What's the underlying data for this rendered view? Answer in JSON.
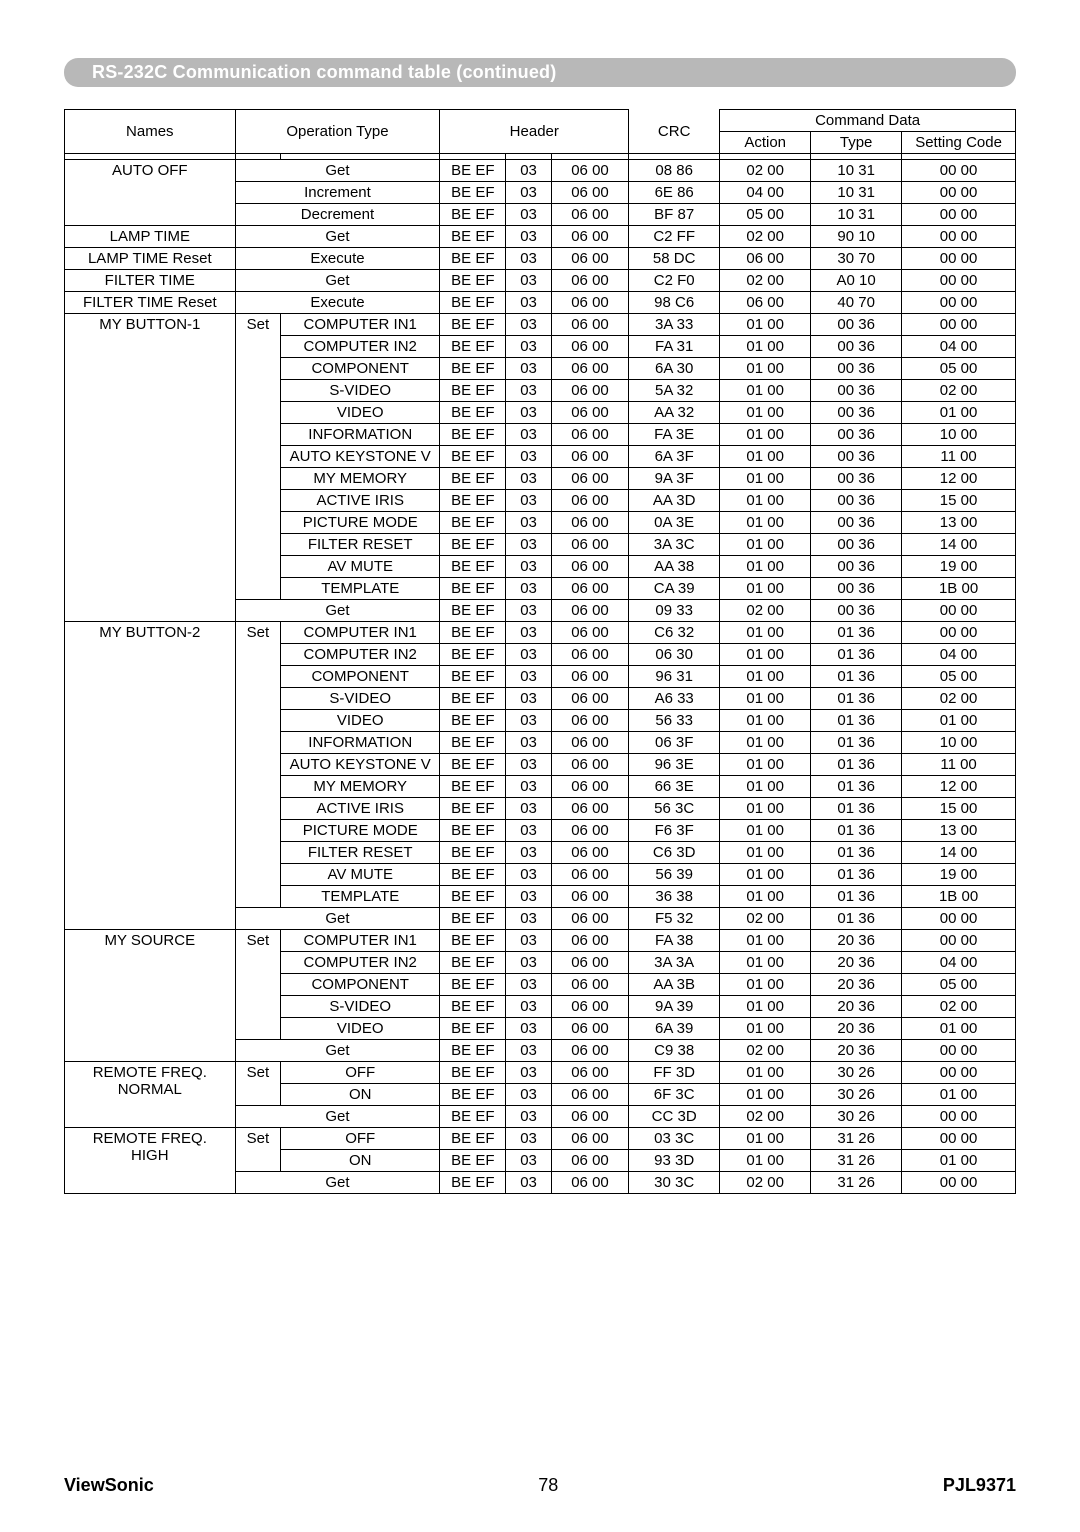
{
  "title": "RS-232C Communication command table (continued)",
  "headers": {
    "names": "Names",
    "operation_type": "Operation Type",
    "header": "Header",
    "command_data": "Command Data",
    "crc": "CRC",
    "action": "Action",
    "type": "Type",
    "setting_code": "Setting Code"
  },
  "footer": {
    "brand": "ViewSonic",
    "page": "78",
    "model": "PJL9371"
  },
  "groups": [
    {
      "name": "AUTO OFF",
      "rows": [
        {
          "op_full": "Get",
          "h1": "BE  EF",
          "h2": "03",
          "h3": "06  00",
          "crc": "08  86",
          "act": "02  00",
          "type": "10  31",
          "sc": "00  00"
        },
        {
          "op_full": "Increment",
          "h1": "BE  EF",
          "h2": "03",
          "h3": "06  00",
          "crc": "6E  86",
          "act": "04  00",
          "type": "10  31",
          "sc": "00  00"
        },
        {
          "op_full": "Decrement",
          "h1": "BE  EF",
          "h2": "03",
          "h3": "06  00",
          "crc": "BF  87",
          "act": "05  00",
          "type": "10  31",
          "sc": "00  00"
        }
      ]
    },
    {
      "name": "LAMP TIME",
      "rows": [
        {
          "op_full": "Get",
          "h1": "BE  EF",
          "h2": "03",
          "h3": "06  00",
          "crc": "C2  FF",
          "act": "02  00",
          "type": "90  10",
          "sc": "00  00"
        }
      ]
    },
    {
      "name": "LAMP TIME Reset",
      "rows": [
        {
          "op_full": "Execute",
          "h1": "BE  EF",
          "h2": "03",
          "h3": "06  00",
          "crc": "58  DC",
          "act": "06  00",
          "type": "30  70",
          "sc": "00  00"
        }
      ]
    },
    {
      "name": "FILTER TIME",
      "rows": [
        {
          "op_full": "Get",
          "h1": "BE  EF",
          "h2": "03",
          "h3": "06  00",
          "crc": "C2  F0",
          "act": "02  00",
          "type": "A0  10",
          "sc": "00  00"
        }
      ]
    },
    {
      "name": "FILTER TIME Reset",
      "rows": [
        {
          "op_full": "Execute",
          "h1": "BE  EF",
          "h2": "03",
          "h3": "06  00",
          "crc": "98  C6",
          "act": "06  00",
          "type": "40  70",
          "sc": "00  00"
        }
      ]
    },
    {
      "name": "MY BUTTON-1",
      "rows": [
        {
          "set": "Set",
          "op": "COMPUTER IN1",
          "h1": "BE  EF",
          "h2": "03",
          "h3": "06  00",
          "crc": "3A  33",
          "act": "01  00",
          "type": "00  36",
          "sc": "00  00"
        },
        {
          "op": "COMPUTER IN2",
          "h1": "BE  EF",
          "h2": "03",
          "h3": "06  00",
          "crc": "FA  31",
          "act": "01  00",
          "type": "00  36",
          "sc": "04  00"
        },
        {
          "op": "COMPONENT",
          "h1": "BE  EF",
          "h2": "03",
          "h3": "06  00",
          "crc": "6A  30",
          "act": "01  00",
          "type": "00  36",
          "sc": "05  00"
        },
        {
          "op": "S-VIDEO",
          "h1": "BE  EF",
          "h2": "03",
          "h3": "06  00",
          "crc": "5A  32",
          "act": "01  00",
          "type": "00  36",
          "sc": "02  00"
        },
        {
          "op": "VIDEO",
          "h1": "BE  EF",
          "h2": "03",
          "h3": "06  00",
          "crc": "AA  32",
          "act": "01  00",
          "type": "00  36",
          "sc": "01  00"
        },
        {
          "op": "INFORMATION",
          "h1": "BE  EF",
          "h2": "03",
          "h3": "06  00",
          "crc": "FA  3E",
          "act": "01  00",
          "type": "00  36",
          "sc": "10  00"
        },
        {
          "op": "AUTO KEYSTONE V",
          "h1": "BE  EF",
          "h2": "03",
          "h3": "06  00",
          "crc": "6A  3F",
          "act": "01  00",
          "type": "00  36",
          "sc": "11  00"
        },
        {
          "op": "MY MEMORY",
          "h1": "BE  EF",
          "h2": "03",
          "h3": "06  00",
          "crc": "9A  3F",
          "act": "01  00",
          "type": "00  36",
          "sc": "12  00"
        },
        {
          "op": "ACTIVE IRIS",
          "h1": "BE  EF",
          "h2": "03",
          "h3": "06  00",
          "crc": "AA  3D",
          "act": "01  00",
          "type": "00  36",
          "sc": "15  00"
        },
        {
          "op": "PICTURE MODE",
          "h1": "BE  EF",
          "h2": "03",
          "h3": "06  00",
          "crc": "0A  3E",
          "act": "01  00",
          "type": "00  36",
          "sc": "13  00"
        },
        {
          "op": "FILTER RESET",
          "h1": "BE  EF",
          "h2": "03",
          "h3": "06  00",
          "crc": "3A  3C",
          "act": "01  00",
          "type": "00  36",
          "sc": "14  00"
        },
        {
          "op": "AV MUTE",
          "h1": "BE  EF",
          "h2": "03",
          "h3": "06  00",
          "crc": "AA  38",
          "act": "01  00",
          "type": "00  36",
          "sc": "19  00"
        },
        {
          "op": "TEMPLATE",
          "h1": "BE  EF",
          "h2": "03",
          "h3": "06  00",
          "crc": "CA  39",
          "act": "01  00",
          "type": "00  36",
          "sc": "1B  00"
        },
        {
          "op_full": "Get",
          "h1": "BE  EF",
          "h2": "03",
          "h3": "06  00",
          "crc": "09  33",
          "act": "02  00",
          "type": "00  36",
          "sc": "00  00"
        }
      ]
    },
    {
      "name": "MY BUTTON-2",
      "rows": [
        {
          "set": "Set",
          "op": "COMPUTER IN1",
          "h1": "BE  EF",
          "h2": "03",
          "h3": "06  00",
          "crc": "C6  32",
          "act": "01  00",
          "type": "01  36",
          "sc": "00  00"
        },
        {
          "op": "COMPUTER IN2",
          "h1": "BE  EF",
          "h2": "03",
          "h3": "06  00",
          "crc": "06  30",
          "act": "01  00",
          "type": "01  36",
          "sc": "04  00"
        },
        {
          "op": "COMPONENT",
          "h1": "BE  EF",
          "h2": "03",
          "h3": "06  00",
          "crc": "96  31",
          "act": "01  00",
          "type": "01  36",
          "sc": "05  00"
        },
        {
          "op": "S-VIDEO",
          "h1": "BE  EF",
          "h2": "03",
          "h3": "06  00",
          "crc": "A6  33",
          "act": "01  00",
          "type": "01  36",
          "sc": "02  00"
        },
        {
          "op": "VIDEO",
          "h1": "BE  EF",
          "h2": "03",
          "h3": "06  00",
          "crc": "56  33",
          "act": "01  00",
          "type": "01  36",
          "sc": "01  00"
        },
        {
          "op": "INFORMATION",
          "h1": "BE  EF",
          "h2": "03",
          "h3": "06  00",
          "crc": "06  3F",
          "act": "01  00",
          "type": "01  36",
          "sc": "10  00"
        },
        {
          "op": "AUTO KEYSTONE V",
          "h1": "BE  EF",
          "h2": "03",
          "h3": "06  00",
          "crc": "96  3E",
          "act": "01  00",
          "type": "01  36",
          "sc": "11  00"
        },
        {
          "op": "MY MEMORY",
          "h1": "BE  EF",
          "h2": "03",
          "h3": "06  00",
          "crc": "66  3E",
          "act": "01  00",
          "type": "01  36",
          "sc": "12  00"
        },
        {
          "op": "ACTIVE IRIS",
          "h1": "BE  EF",
          "h2": "03",
          "h3": "06  00",
          "crc": "56  3C",
          "act": "01  00",
          "type": "01  36",
          "sc": "15  00"
        },
        {
          "op": "PICTURE MODE",
          "h1": "BE  EF",
          "h2": "03",
          "h3": "06  00",
          "crc": "F6  3F",
          "act": "01  00",
          "type": "01  36",
          "sc": "13  00"
        },
        {
          "op": "FILTER RESET",
          "h1": "BE  EF",
          "h2": "03",
          "h3": "06  00",
          "crc": "C6  3D",
          "act": "01  00",
          "type": "01  36",
          "sc": "14  00"
        },
        {
          "op": "AV MUTE",
          "h1": "BE  EF",
          "h2": "03",
          "h3": "06  00",
          "crc": "56  39",
          "act": "01  00",
          "type": "01  36",
          "sc": "19  00"
        },
        {
          "op": "TEMPLATE",
          "h1": "BE  EF",
          "h2": "03",
          "h3": "06  00",
          "crc": "36  38",
          "act": "01  00",
          "type": "01  36",
          "sc": "1B  00"
        },
        {
          "op_full": "Get",
          "h1": "BE  EF",
          "h2": "03",
          "h3": "06  00",
          "crc": "F5  32",
          "act": "02  00",
          "type": "01  36",
          "sc": "00  00"
        }
      ]
    },
    {
      "name": "MY SOURCE",
      "rows": [
        {
          "set": "Set",
          "op": "COMPUTER IN1",
          "h1": "BE  EF",
          "h2": "03",
          "h3": "06  00",
          "crc": "FA  38",
          "act": "01  00",
          "type": "20  36",
          "sc": "00  00"
        },
        {
          "op": "COMPUTER IN2",
          "h1": "BE  EF",
          "h2": "03",
          "h3": "06  00",
          "crc": "3A  3A",
          "act": "01  00",
          "type": "20  36",
          "sc": "04  00"
        },
        {
          "op": "COMPONENT",
          "h1": "BE  EF",
          "h2": "03",
          "h3": "06  00",
          "crc": "AA  3B",
          "act": "01  00",
          "type": "20  36",
          "sc": "05  00"
        },
        {
          "op": "S-VIDEO",
          "h1": "BE  EF",
          "h2": "03",
          "h3": "06  00",
          "crc": "9A  39",
          "act": "01  00",
          "type": "20  36",
          "sc": "02  00"
        },
        {
          "op": "VIDEO",
          "h1": "BE  EF",
          "h2": "03",
          "h3": "06  00",
          "crc": "6A  39",
          "act": "01  00",
          "type": "20  36",
          "sc": "01  00"
        },
        {
          "op_full": "Get",
          "h1": "BE  EF",
          "h2": "03",
          "h3": "06  00",
          "crc": "C9  38",
          "act": "02  00",
          "type": "20  36",
          "sc": "00  00"
        }
      ]
    },
    {
      "name": "REMOTE FREQ. NORMAL",
      "name_lines": [
        "REMOTE FREQ.",
        "NORMAL"
      ],
      "rows": [
        {
          "set": "Set",
          "op": "OFF",
          "h1": "BE  EF",
          "h2": "03",
          "h3": "06  00",
          "crc": "FF  3D",
          "act": "01  00",
          "type": "30  26",
          "sc": "00  00"
        },
        {
          "op": "ON",
          "h1": "BE  EF",
          "h2": "03",
          "h3": "06  00",
          "crc": "6F  3C",
          "act": "01  00",
          "type": "30  26",
          "sc": "01  00"
        },
        {
          "op_full": "Get",
          "h1": "BE  EF",
          "h2": "03",
          "h3": "06  00",
          "crc": "CC  3D",
          "act": "02  00",
          "type": "30  26",
          "sc": "00  00"
        }
      ]
    },
    {
      "name": "REMOTE FREQ. HIGH",
      "name_lines": [
        "REMOTE FREQ.",
        "HIGH"
      ],
      "rows": [
        {
          "set": "Set",
          "op": "OFF",
          "h1": "BE  EF",
          "h2": "03",
          "h3": "06  00",
          "crc": "03  3C",
          "act": "01  00",
          "type": "31  26",
          "sc": "00  00"
        },
        {
          "op": "ON",
          "h1": "BE  EF",
          "h2": "03",
          "h3": "06  00",
          "crc": "93  3D",
          "act": "01  00",
          "type": "31  26",
          "sc": "01  00"
        },
        {
          "op_full": "Get",
          "h1": "BE  EF",
          "h2": "03",
          "h3": "06  00",
          "crc": "30  3C",
          "act": "02  00",
          "type": "31  26",
          "sc": "00  00"
        }
      ]
    }
  ]
}
